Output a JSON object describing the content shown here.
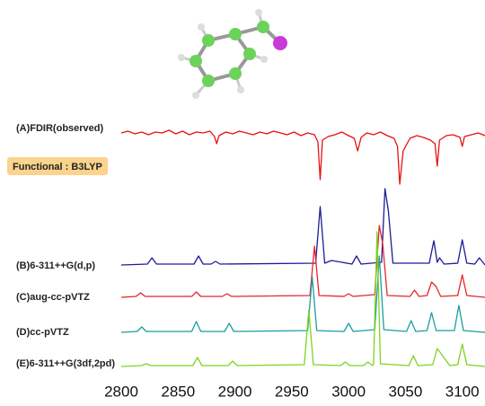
{
  "chart_data": {
    "type": "line",
    "annotation": "Functional : B3LYP",
    "xlim": [
      2800,
      3120
    ],
    "xticks": [
      2800,
      2850,
      2900,
      2950,
      3000,
      3050,
      3100
    ],
    "series": [
      {
        "name": "(A)FDIR(observed)",
        "color": "#e81010",
        "x": [
          2800,
          2806,
          2812,
          2818,
          2824,
          2830,
          2836,
          2842,
          2848,
          2854,
          2860,
          2866,
          2872,
          2878,
          2882,
          2884,
          2886,
          2892,
          2898,
          2904,
          2910,
          2916,
          2922,
          2928,
          2934,
          2940,
          2946,
          2952,
          2958,
          2964,
          2970,
          2973,
          2975,
          2977,
          2982,
          2988,
          2994,
          3000,
          3005,
          3008,
          3011,
          3016,
          3022,
          3028,
          3034,
          3040,
          3043,
          3045,
          3048,
          3054,
          3060,
          3066,
          3072,
          3076,
          3078,
          3080,
          3086,
          3092,
          3098,
          3100,
          3102,
          3108,
          3114,
          3120
        ],
        "values": [
          0,
          2,
          -1,
          1,
          -2,
          1,
          0,
          3,
          -1,
          2,
          -2,
          1,
          0,
          2,
          -4,
          -12,
          -3,
          1,
          -1,
          2,
          0,
          -2,
          1,
          -1,
          2,
          0,
          -2,
          1,
          -3,
          0,
          -2,
          -10,
          -52,
          -8,
          -4,
          -2,
          1,
          -3,
          -6,
          -20,
          -5,
          0,
          -2,
          1,
          -3,
          -6,
          -15,
          -57,
          -20,
          -6,
          -3,
          -5,
          -8,
          -12,
          -37,
          -8,
          -3,
          -2,
          -5,
          -15,
          -4,
          -2,
          0,
          -3
        ]
      },
      {
        "name": "(B)6-311++G(d,p)",
        "color": "#1c1c96",
        "x": [
          2800,
          2823,
          2827,
          2831,
          2864,
          2868,
          2872,
          2879,
          2883,
          2887,
          2971,
          2975,
          2979,
          2985,
          3003,
          3007,
          3011,
          3029,
          3032,
          3035,
          3039,
          3071,
          3075,
          3078,
          3080,
          3084,
          3096,
          3100,
          3104,
          3111,
          3115,
          3120
        ],
        "values": [
          0,
          1,
          8,
          1,
          1,
          10,
          1,
          1,
          4,
          1,
          2,
          65,
          2,
          5,
          1,
          10,
          1,
          3,
          85,
          60,
          2,
          2,
          27,
          3,
          8,
          1,
          2,
          28,
          2,
          1,
          8,
          0
        ]
      },
      {
        "name": "(C)aug-cc-pVTZ",
        "color": "#e8242a",
        "x": [
          2800,
          2813,
          2817,
          2821,
          2862,
          2866,
          2870,
          2889,
          2893,
          2897,
          2966,
          2970,
          2974,
          2996,
          3000,
          3004,
          3023,
          3027,
          3030,
          3034,
          3054,
          3058,
          3062,
          3069,
          3073,
          3077,
          3081,
          3096,
          3100,
          3104,
          3120
        ],
        "values": [
          0,
          1,
          5,
          1,
          1,
          6,
          1,
          1,
          4,
          1,
          2,
          57,
          2,
          1,
          4,
          1,
          3,
          80,
          60,
          2,
          1,
          8,
          1,
          2,
          17,
          12,
          1,
          2,
          25,
          2,
          0
        ]
      },
      {
        "name": "(D)cc-pVTZ",
        "color": "#1a9e9e",
        "x": [
          2800,
          2814,
          2818,
          2822,
          2862,
          2866,
          2870,
          2891,
          2895,
          2899,
          2964,
          2968,
          2972,
          2996,
          3000,
          3004,
          3023,
          3027,
          3031,
          3051,
          3055,
          3059,
          3069,
          3073,
          3077,
          3093,
          3097,
          3101,
          3120
        ],
        "values": [
          0,
          1,
          6,
          1,
          1,
          12,
          1,
          1,
          10,
          1,
          2,
          62,
          2,
          1,
          10,
          1,
          3,
          85,
          3,
          1,
          13,
          1,
          2,
          22,
          2,
          2,
          30,
          2,
          0
        ]
      },
      {
        "name": "(E)6-311++G(3df,2pd)",
        "color": "#7ed321",
        "x": [
          2800,
          2818,
          2822,
          2826,
          2863,
          2867,
          2871,
          2894,
          2898,
          2902,
          2961,
          2965,
          2969,
          2993,
          2997,
          3001,
          3013,
          3017,
          3021,
          3022,
          3025,
          3028,
          3053,
          3057,
          3061,
          3074,
          3078,
          3085,
          3089,
          3096,
          3100,
          3104,
          3120
        ],
        "values": [
          0,
          1,
          3,
          1,
          1,
          10,
          1,
          1,
          6,
          1,
          2,
          63,
          2,
          1,
          5,
          1,
          1,
          5,
          1,
          3,
          150,
          3,
          1,
          12,
          1,
          2,
          20,
          8,
          1,
          2,
          25,
          2,
          0
        ]
      }
    ]
  }
}
